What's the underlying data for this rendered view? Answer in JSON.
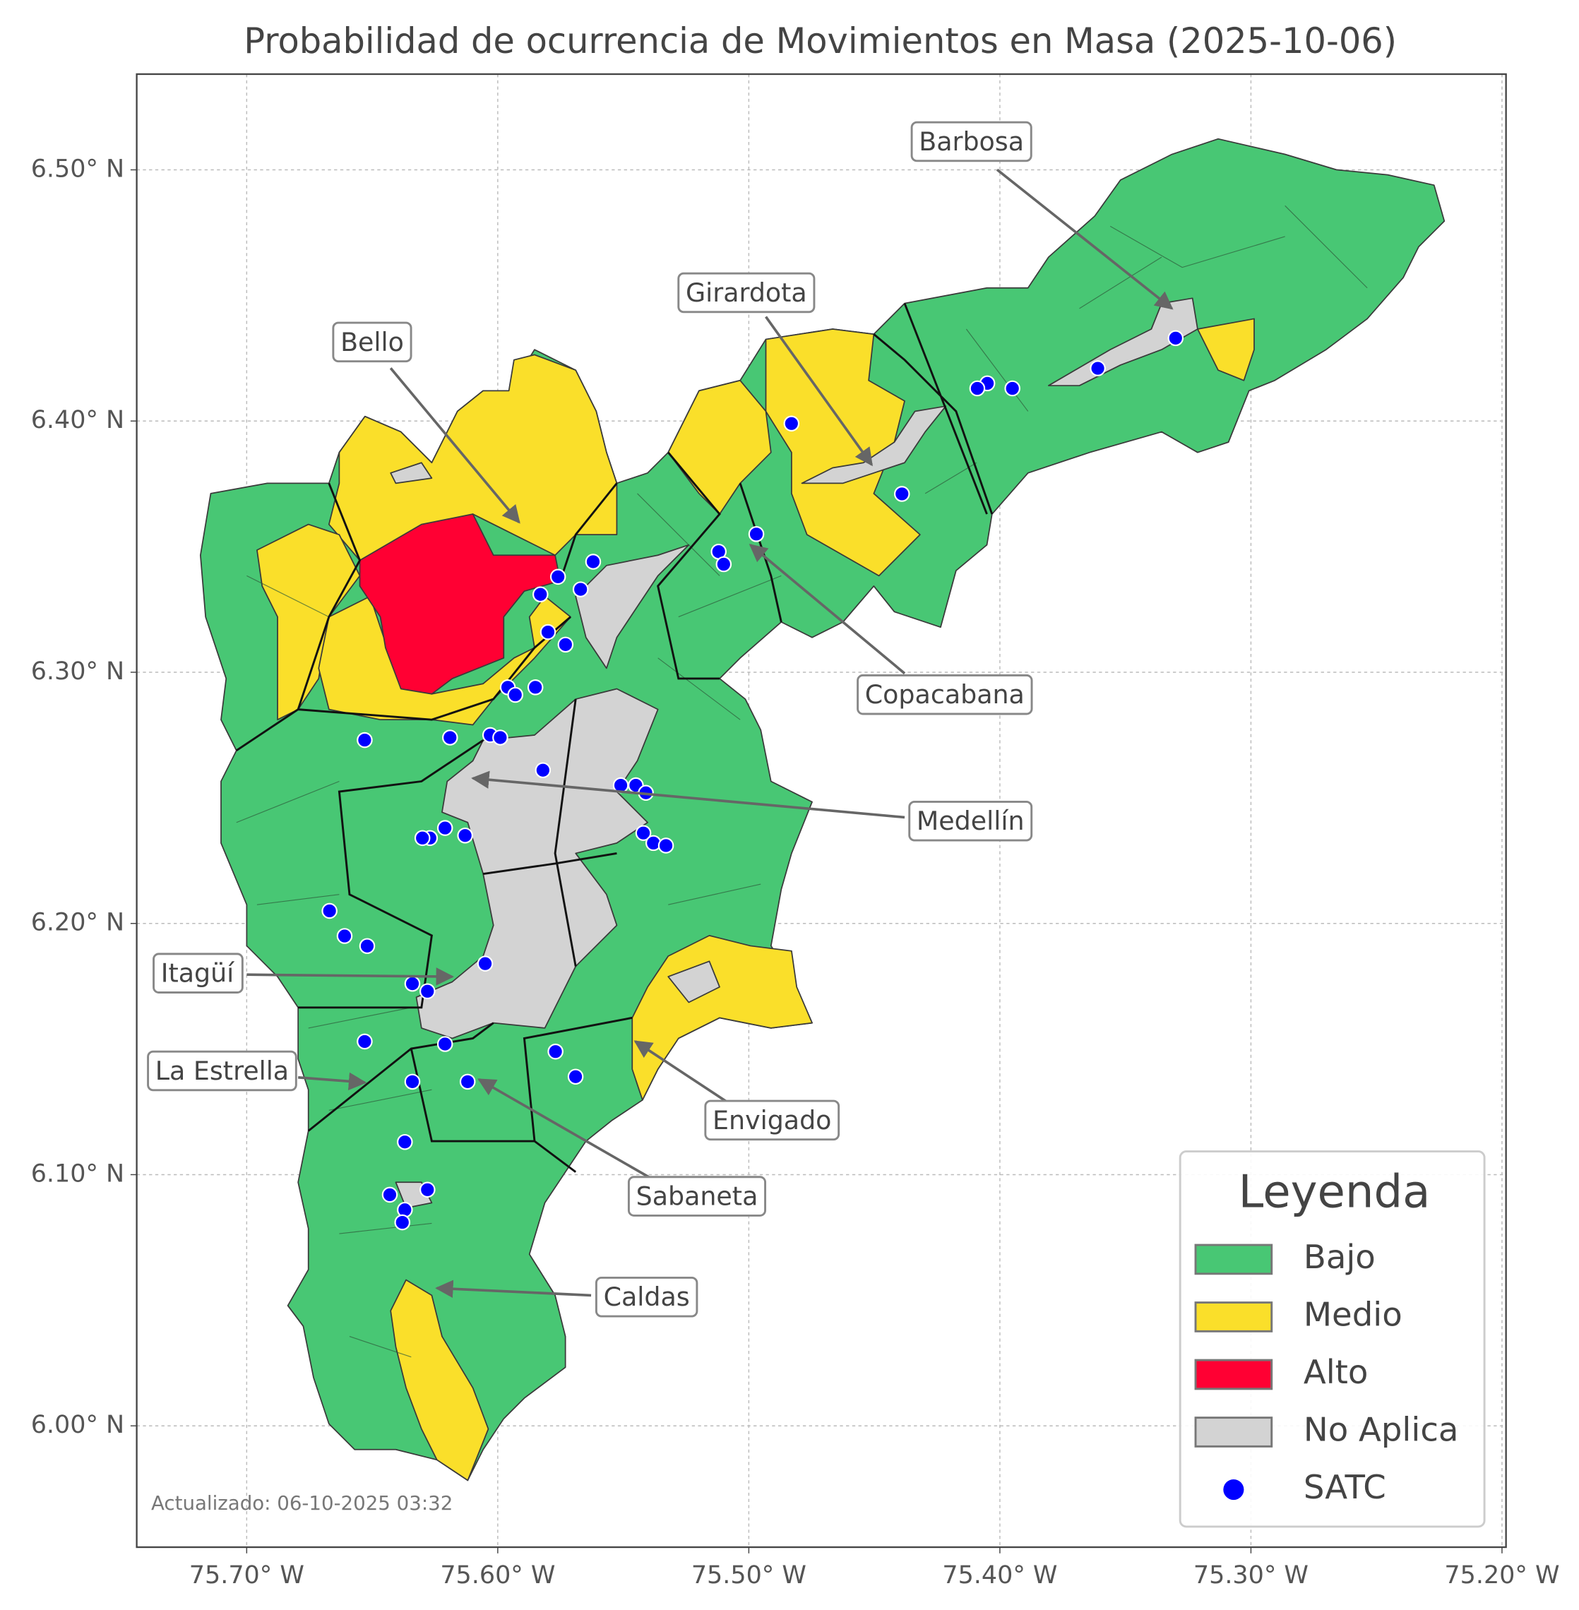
{
  "title": "Probabilidad de ocurrencia de Movimientos en Masa (2025-10-06)",
  "map": {
    "xlim": [
      -75.7438,
      -75.1984
    ],
    "ylim": [
      5.9517,
      6.5381
    ],
    "xticks": [
      {
        "value": -75.7,
        "label": "75.70° W"
      },
      {
        "value": -75.6,
        "label": "75.60° W"
      },
      {
        "value": -75.5,
        "label": "75.50° W"
      },
      {
        "value": -75.4,
        "label": "75.40° W"
      },
      {
        "value": -75.3,
        "label": "75.30° W"
      },
      {
        "value": -75.2,
        "label": "75.20° W"
      }
    ],
    "yticks": [
      {
        "value": 6.0,
        "label": "6.00° N"
      },
      {
        "value": 6.1,
        "label": "6.10° N"
      },
      {
        "value": 6.2,
        "label": "6.20° N"
      },
      {
        "value": 6.3,
        "label": "6.30° N"
      },
      {
        "value": 6.4,
        "label": "6.40° N"
      },
      {
        "value": 6.5,
        "label": "6.50° N"
      }
    ],
    "grid": true
  },
  "satc": {
    "name": "SATC",
    "color": "#0000ff",
    "lon": [
      -75.33,
      -75.361,
      -75.395,
      -75.405,
      -75.409,
      -75.483,
      -75.439,
      -75.497,
      -75.512,
      -75.51,
      -75.562,
      -75.576,
      -75.567,
      -75.583,
      -75.58,
      -75.573,
      -75.596,
      -75.593,
      -75.585,
      -75.653,
      -75.619,
      -75.603,
      -75.599,
      -75.582,
      -75.551,
      -75.545,
      -75.541,
      -75.542,
      -75.538,
      -75.533,
      -75.621,
      -75.627,
      -75.63,
      -75.613,
      -75.667,
      -75.661,
      -75.652,
      -75.605,
      -75.634,
      -75.628,
      -75.653,
      -75.621,
      -75.577,
      -75.569,
      -75.634,
      -75.612,
      -75.637,
      -75.643,
      -75.628,
      -75.637,
      -75.638
    ],
    "lat": [
      6.433,
      6.421,
      6.413,
      6.415,
      6.413,
      6.399,
      6.371,
      6.355,
      6.348,
      6.343,
      6.344,
      6.338,
      6.333,
      6.331,
      6.316,
      6.311,
      6.294,
      6.291,
      6.294,
      6.273,
      6.274,
      6.275,
      6.274,
      6.261,
      6.255,
      6.255,
      6.252,
      6.236,
      6.232,
      6.231,
      6.238,
      6.234,
      6.234,
      6.235,
      6.205,
      6.195,
      6.191,
      6.184,
      6.176,
      6.173,
      6.153,
      6.152,
      6.149,
      6.139,
      6.137,
      6.137,
      6.113,
      6.092,
      6.094,
      6.086,
      6.081
    ]
  },
  "legend": {
    "title": "Leyenda",
    "entries": [
      {
        "label": "Bajo",
        "color": "#48c774"
      },
      {
        "label": "Medio",
        "color": "#fadf2a"
      },
      {
        "label": "Alto",
        "color": "#ff0033"
      },
      {
        "label": "No Aplica",
        "color": "#d3d3d3"
      }
    ]
  },
  "annotations": [
    "Barbosa",
    "Girardota",
    "Bello",
    "Copacabana",
    "Medellín",
    "Itagüí",
    "La Estrella",
    "Envigado",
    "Sabaneta",
    "Caldas"
  ],
  "updated": "Actualizado: 06-10-2025 03:32"
}
